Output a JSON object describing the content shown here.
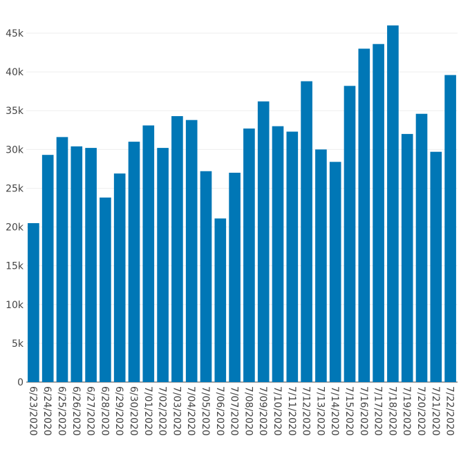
{
  "chart_data": {
    "type": "bar",
    "title": "",
    "xlabel": "",
    "ylabel": "",
    "categories": [
      "6/23/2020",
      "6/24/2020",
      "6/25/2020",
      "6/26/2020",
      "6/27/2020",
      "6/28/2020",
      "6/29/2020",
      "6/30/2020",
      "7/01/2020",
      "7/02/2020",
      "7/03/2020",
      "7/04/2020",
      "7/05/2020",
      "7/06/2020",
      "7/07/2020",
      "7/08/2020",
      "7/09/2020",
      "7/10/2020",
      "7/11/2020",
      "7/12/2020",
      "7/13/2020",
      "7/14/2020",
      "7/15/2020",
      "7/16/2020",
      "7/17/2020",
      "7/18/2020",
      "7/19/2020",
      "7/20/2020",
      "7/21/2020",
      "7/22/2020"
    ],
    "values": [
      20500,
      29300,
      31600,
      30400,
      30200,
      23800,
      26900,
      31000,
      33100,
      30200,
      34300,
      33800,
      27200,
      21100,
      27000,
      32700,
      36200,
      33000,
      32300,
      38800,
      30000,
      28400,
      38200,
      43000,
      43600,
      46000,
      32000,
      34600,
      29700,
      39600
    ],
    "yticks": [
      0,
      5000,
      10000,
      15000,
      20000,
      25000,
      30000,
      35000,
      40000,
      45000
    ],
    "ytick_labels": [
      "0",
      "5k",
      "10k",
      "15k",
      "20k",
      "25k",
      "30k",
      "35k",
      "40k",
      "45k"
    ],
    "ylim": [
      0,
      46000
    ],
    "grid": true,
    "bar_color": "#0077b6"
  }
}
